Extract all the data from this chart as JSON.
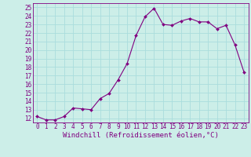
{
  "x": [
    0,
    1,
    2,
    3,
    4,
    5,
    6,
    7,
    8,
    9,
    10,
    11,
    12,
    13,
    14,
    15,
    16,
    17,
    18,
    19,
    20,
    21,
    22,
    23
  ],
  "y": [
    12.2,
    11.8,
    11.8,
    12.2,
    13.2,
    13.1,
    13.0,
    14.3,
    14.9,
    16.5,
    18.4,
    21.7,
    23.9,
    24.9,
    23.0,
    22.9,
    23.4,
    23.7,
    23.3,
    23.3,
    22.5,
    22.9,
    20.6,
    17.4
  ],
  "line_color": "#800080",
  "marker": "D",
  "marker_size": 2,
  "background_color": "#cceee8",
  "grid_color": "#aadddd",
  "xlabel": "Windchill (Refroidissement éolien,°C)",
  "ylim": [
    11.5,
    25.5
  ],
  "xlim": [
    -0.5,
    23.5
  ],
  "yticks": [
    12,
    13,
    14,
    15,
    16,
    17,
    18,
    19,
    20,
    21,
    22,
    23,
    24,
    25
  ],
  "xticks": [
    0,
    1,
    2,
    3,
    4,
    5,
    6,
    7,
    8,
    9,
    10,
    11,
    12,
    13,
    14,
    15,
    16,
    17,
    18,
    19,
    20,
    21,
    22,
    23
  ],
  "tick_fontsize": 5.5,
  "xlabel_fontsize": 6.5,
  "tick_color": "#800080",
  "axis_color": "#800080",
  "linewidth": 0.8
}
